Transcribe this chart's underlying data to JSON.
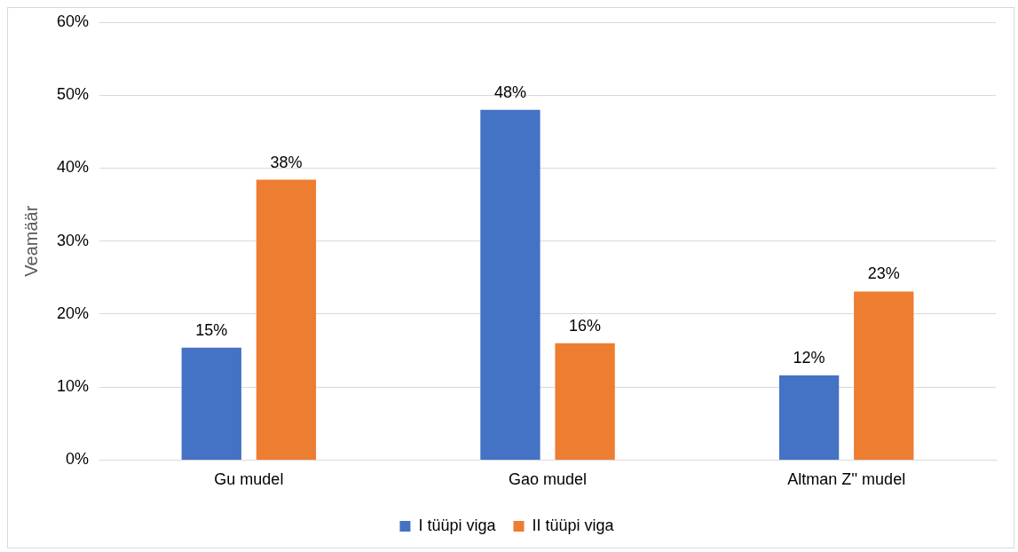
{
  "chart_data": {
    "type": "bar",
    "ylabel": "Veamäär",
    "categories": [
      "Gu mudel",
      "Gao mudel",
      "Altman Z'' mudel"
    ],
    "series": [
      {
        "name": "I tüüpi viga",
        "color": "#4472c4",
        "values": [
          15.4,
          48.0,
          11.6
        ],
        "value_labels": [
          "15%",
          "48%",
          "12%"
        ]
      },
      {
        "name": "II tüüpi viga",
        "color": "#ed7d31",
        "values": [
          38.4,
          16.0,
          23.1
        ],
        "value_labels": [
          "38%",
          "16%",
          "23%"
        ]
      }
    ],
    "ylim": [
      0,
      60
    ],
    "yticks": [
      {
        "value": 0,
        "label": "0%"
      },
      {
        "value": 10,
        "label": "10%"
      },
      {
        "value": 20,
        "label": "20%"
      },
      {
        "value": 30,
        "label": "30%"
      },
      {
        "value": 40,
        "label": "40%"
      },
      {
        "value": 50,
        "label": "50%"
      },
      {
        "value": 60,
        "label": "60%"
      }
    ],
    "grid": "y",
    "legend": "bottom"
  }
}
